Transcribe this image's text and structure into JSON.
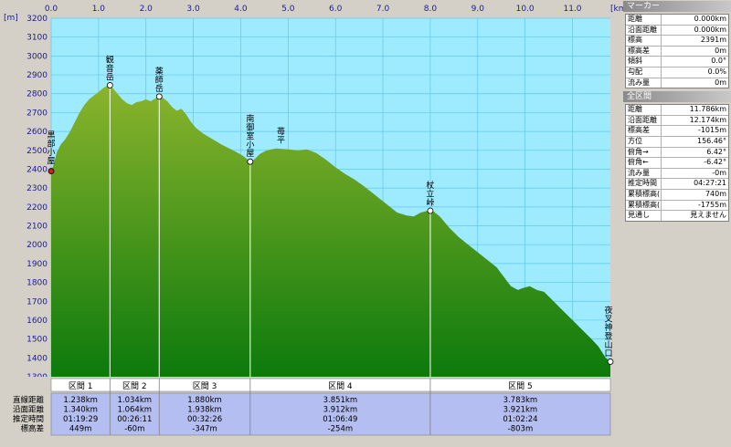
{
  "chart_data": {
    "type": "area",
    "x_unit": "[km]",
    "y_unit": "[m]",
    "xlim": [
      0,
      11.8
    ],
    "ylim": [
      1300,
      3200
    ],
    "x_ticks": [
      "0.0",
      "1.0",
      "2.0",
      "3.0",
      "4.0",
      "5.0",
      "6.0",
      "7.0",
      "8.0",
      "9.0",
      "10.0",
      "11.0"
    ],
    "y_ticks": [
      "3200",
      "3100",
      "3000",
      "2900",
      "2800",
      "2700",
      "2600",
      "2500",
      "2400",
      "2300",
      "2200",
      "2100",
      "2000",
      "1900",
      "1800",
      "1700",
      "1600",
      "1500",
      "1400",
      "1300"
    ],
    "profile": [
      [
        0.0,
        2390
      ],
      [
        0.06,
        2430
      ],
      [
        0.12,
        2490
      ],
      [
        0.2,
        2530
      ],
      [
        0.3,
        2560
      ],
      [
        0.4,
        2600
      ],
      [
        0.5,
        2650
      ],
      [
        0.6,
        2700
      ],
      [
        0.7,
        2740
      ],
      [
        0.8,
        2770
      ],
      [
        0.9,
        2790
      ],
      [
        1.0,
        2810
      ],
      [
        1.1,
        2830
      ],
      [
        1.2,
        2845
      ],
      [
        1.24,
        2845
      ],
      [
        1.3,
        2830
      ],
      [
        1.4,
        2800
      ],
      [
        1.5,
        2770
      ],
      [
        1.6,
        2750
      ],
      [
        1.7,
        2740
      ],
      [
        1.8,
        2755
      ],
      [
        1.9,
        2760
      ],
      [
        2.0,
        2770
      ],
      [
        2.1,
        2760
      ],
      [
        2.2,
        2775
      ],
      [
        2.28,
        2785
      ],
      [
        2.35,
        2780
      ],
      [
        2.45,
        2760
      ],
      [
        2.55,
        2730
      ],
      [
        2.65,
        2710
      ],
      [
        2.75,
        2720
      ],
      [
        2.85,
        2690
      ],
      [
        2.95,
        2650
      ],
      [
        3.05,
        2620
      ],
      [
        3.2,
        2590
      ],
      [
        3.4,
        2560
      ],
      [
        3.6,
        2530
      ],
      [
        3.8,
        2505
      ],
      [
        3.95,
        2485
      ],
      [
        4.05,
        2470
      ],
      [
        4.15,
        2450
      ],
      [
        4.2,
        2440
      ],
      [
        4.28,
        2450
      ],
      [
        4.4,
        2480
      ],
      [
        4.55,
        2500
      ],
      [
        4.75,
        2510
      ],
      [
        5.0,
        2505
      ],
      [
        5.2,
        2500
      ],
      [
        5.4,
        2505
      ],
      [
        5.6,
        2485
      ],
      [
        5.8,
        2450
      ],
      [
        6.0,
        2410
      ],
      [
        6.2,
        2375
      ],
      [
        6.4,
        2345
      ],
      [
        6.6,
        2310
      ],
      [
        6.8,
        2270
      ],
      [
        7.0,
        2230
      ],
      [
        7.15,
        2200
      ],
      [
        7.3,
        2170
      ],
      [
        7.5,
        2155
      ],
      [
        7.65,
        2150
      ],
      [
        7.8,
        2170
      ],
      [
        7.95,
        2180
      ],
      [
        8.05,
        2180
      ],
      [
        8.2,
        2150
      ],
      [
        8.4,
        2090
      ],
      [
        8.6,
        2040
      ],
      [
        8.8,
        2000
      ],
      [
        9.0,
        1960
      ],
      [
        9.2,
        1920
      ],
      [
        9.4,
        1880
      ],
      [
        9.55,
        1830
      ],
      [
        9.7,
        1780
      ],
      [
        9.85,
        1760
      ],
      [
        9.95,
        1770
      ],
      [
        10.1,
        1780
      ],
      [
        10.25,
        1760
      ],
      [
        10.4,
        1750
      ],
      [
        10.6,
        1700
      ],
      [
        10.8,
        1650
      ],
      [
        11.0,
        1600
      ],
      [
        11.2,
        1550
      ],
      [
        11.4,
        1500
      ],
      [
        11.55,
        1460
      ],
      [
        11.7,
        1400
      ],
      [
        11.8,
        1380
      ]
    ],
    "waypoints": [
      {
        "name": "黒部小屋",
        "km": 0.0,
        "elev": 2390
      },
      {
        "name": "観音岳",
        "km": 1.24,
        "elev": 2845
      },
      {
        "name": "薬師岳",
        "km": 2.28,
        "elev": 2785
      },
      {
        "name": "南御室小屋",
        "km": 4.2,
        "elev": 2440
      },
      {
        "name": "苺平",
        "km": 4.85,
        "elev": 2510
      },
      {
        "name": "杖立峠",
        "km": 8.0,
        "elev": 2180
      },
      {
        "name": "夜叉神登山口",
        "km": 11.8,
        "elev": 1380
      }
    ]
  },
  "segments": {
    "row_headers": [
      "直線距離",
      "沿面距離",
      "推定時間",
      "標高差"
    ],
    "items": [
      {
        "label": "区間 1",
        "straight": "1.238km",
        "surface": "1.340km",
        "time": "01:19:29",
        "elev": "449m"
      },
      {
        "label": "区間 2",
        "straight": "1.034km",
        "surface": "1.064km",
        "time": "00:26:11",
        "elev": "-60m"
      },
      {
        "label": "区間 3",
        "straight": "1.880km",
        "surface": "1.938km",
        "time": "00:32:26",
        "elev": "-347m"
      },
      {
        "label": "区間 4",
        "straight": "3.851km",
        "surface": "3.912km",
        "time": "01:06:49",
        "elev": "-254m"
      },
      {
        "label": "区間 5",
        "straight": "3.783km",
        "surface": "3.921km",
        "time": "01:02:24",
        "elev": "-803m"
      }
    ]
  },
  "marker_panel": {
    "title": "マーカー",
    "rows": [
      {
        "label": "距離",
        "value": "0.000km"
      },
      {
        "label": "沿面距離",
        "value": "0.000km"
      },
      {
        "label": "標高",
        "value": "2391m"
      },
      {
        "label": "標高差",
        "value": "0m"
      },
      {
        "label": "傾斜",
        "value": "0.0°"
      },
      {
        "label": "勾配",
        "value": "0.0%"
      },
      {
        "label": "流み量",
        "value": "0m"
      }
    ]
  },
  "full_panel": {
    "title": "全区間",
    "rows": [
      {
        "label": "距離",
        "value": "11.786km"
      },
      {
        "label": "沿面距離",
        "value": "12.174km"
      },
      {
        "label": "標高差",
        "value": "-1015m"
      },
      {
        "label": "方位",
        "value": "156.46°"
      },
      {
        "label": "俯角→",
        "value": "6.42°"
      },
      {
        "label": "俯角←",
        "value": "-6.42°"
      },
      {
        "label": "流み量",
        "value": "-0m"
      },
      {
        "label": "推定時間",
        "value": "04:27:21"
      },
      {
        "label": "累積標高(+)",
        "value": "740m"
      },
      {
        "label": "累積標高(−)",
        "value": "-1755m"
      },
      {
        "label": "見通し",
        "value": "見えません"
      }
    ]
  },
  "colors": {
    "plot_bg": "#9eeaff",
    "fill_top": "#8bb42c",
    "fill_bottom": "#0c7a0c",
    "segment_bg": "#b4bef0"
  }
}
